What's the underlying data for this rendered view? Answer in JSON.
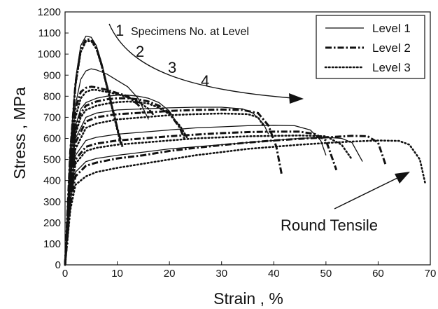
{
  "chart_data": {
    "type": "line",
    "xlabel": "Strain ,  %",
    "ylabel": "Stress ,  MPa",
    "xlim": [
      0,
      70
    ],
    "ylim": [
      0,
      1200
    ],
    "x_ticks": [
      0,
      10,
      20,
      30,
      40,
      50,
      60,
      70
    ],
    "y_ticks": [
      0,
      100,
      200,
      300,
      400,
      500,
      600,
      700,
      800,
      900,
      1000,
      1100,
      1200
    ],
    "grid": false,
    "legend_position": "top-right",
    "legend": [
      {
        "label": "Level 1",
        "style": "solid"
      },
      {
        "label": "Level 2",
        "style": "dash-dot"
      },
      {
        "label": "Level 3",
        "style": "dotted"
      }
    ],
    "annotations": {
      "specimens_label": "Specimens No. at Level",
      "specimen_numbers": [
        "1",
        "2",
        "3",
        "4"
      ],
      "round_tensile": "Round Tensile"
    },
    "series": [
      {
        "level": 1,
        "specimen": 1,
        "x": [
          0,
          1,
          2,
          3,
          4,
          5,
          6,
          7,
          8,
          9,
          10,
          10.5,
          11
        ],
        "y": [
          0,
          560,
          880,
          1040,
          1085,
          1080,
          1040,
          960,
          860,
          760,
          660,
          600,
          560
        ]
      },
      {
        "level": 2,
        "specimen": 1,
        "x": [
          0,
          1,
          2,
          3,
          4,
          5,
          6,
          7,
          8,
          9,
          10,
          11
        ],
        "y": [
          0,
          540,
          860,
          1020,
          1070,
          1068,
          1030,
          950,
          850,
          750,
          650,
          560
        ]
      },
      {
        "level": 3,
        "specimen": 1,
        "x": [
          0,
          1,
          2,
          3,
          4,
          5,
          6,
          7,
          8,
          9,
          10,
          10.7
        ],
        "y": [
          0,
          520,
          850,
          1010,
          1060,
          1062,
          1025,
          945,
          845,
          745,
          640,
          570
        ]
      },
      {
        "level": 1,
        "specimen": 2,
        "x": [
          0,
          1,
          2,
          3,
          4,
          5,
          6,
          8,
          10,
          12,
          14,
          15,
          16
        ],
        "y": [
          0,
          480,
          760,
          880,
          920,
          930,
          925,
          905,
          875,
          845,
          790,
          740,
          690
        ]
      },
      {
        "level": 2,
        "specimen": 2,
        "x": [
          0,
          1,
          2,
          3,
          4,
          5,
          6,
          8,
          10,
          12,
          14,
          15
        ],
        "y": [
          0,
          470,
          740,
          820,
          840,
          845,
          842,
          830,
          815,
          800,
          760,
          720
        ]
      },
      {
        "level": 3,
        "specimen": 2,
        "x": [
          0,
          1,
          2,
          3,
          4,
          5,
          6,
          8,
          10,
          12,
          14,
          16,
          17
        ],
        "y": [
          0,
          450,
          700,
          790,
          820,
          830,
          830,
          820,
          810,
          795,
          775,
          740,
          710
        ]
      },
      {
        "level": 1,
        "specimen": 3,
        "x": [
          0,
          1,
          2,
          3,
          4,
          6,
          8,
          10,
          12,
          14,
          16,
          18,
          20,
          21,
          22
        ],
        "y": [
          0,
          420,
          660,
          740,
          770,
          790,
          800,
          805,
          805,
          800,
          790,
          770,
          730,
          690,
          650
        ]
      },
      {
        "level": 2,
        "specimen": 3,
        "x": [
          0,
          1,
          2,
          3,
          4,
          6,
          8,
          10,
          12,
          14,
          16,
          18,
          20,
          22,
          23
        ],
        "y": [
          0,
          410,
          640,
          720,
          755,
          775,
          785,
          790,
          790,
          785,
          775,
          755,
          720,
          650,
          590
        ]
      },
      {
        "level": 3,
        "specimen": 3,
        "x": [
          0,
          1,
          2,
          3,
          4,
          6,
          8,
          10,
          12,
          14,
          16,
          18,
          20,
          22,
          23.5
        ],
        "y": [
          0,
          400,
          620,
          700,
          735,
          755,
          765,
          772,
          775,
          772,
          765,
          745,
          715,
          660,
          600
        ]
      },
      {
        "level": 1,
        "specimen": 4,
        "x": [
          0,
          1,
          2,
          4,
          6,
          10,
          15,
          20,
          25,
          30,
          34,
          36,
          38,
          39
        ],
        "y": [
          0,
          400,
          600,
          700,
          720,
          735,
          740,
          745,
          748,
          748,
          740,
          720,
          670,
          620
        ]
      },
      {
        "level": 2,
        "specimen": 4,
        "x": [
          0,
          1,
          2,
          4,
          6,
          10,
          15,
          20,
          25,
          30,
          34,
          37,
          39,
          40.5,
          41.5
        ],
        "y": [
          0,
          380,
          580,
          680,
          700,
          715,
          722,
          730,
          735,
          737,
          735,
          720,
          660,
          560,
          430
        ]
      },
      {
        "level": 3,
        "specimen": 4,
        "x": [
          0,
          1,
          2,
          4,
          6,
          10,
          15,
          20,
          25,
          30,
          35,
          37,
          38
        ],
        "y": [
          0,
          360,
          550,
          650,
          670,
          690,
          700,
          710,
          715,
          718,
          715,
          700,
          660
        ]
      },
      {
        "level": 1,
        "specimen": 5,
        "x": [
          0,
          1,
          2,
          4,
          6,
          10,
          15,
          20,
          25,
          30,
          35,
          40,
          44,
          47,
          49,
          50
        ],
        "y": [
          0,
          350,
          520,
          590,
          605,
          620,
          630,
          640,
          650,
          655,
          660,
          662,
          660,
          640,
          590,
          520
        ]
      },
      {
        "level": 2,
        "specimen": 5,
        "x": [
          0,
          1,
          2,
          4,
          6,
          10,
          15,
          20,
          25,
          30,
          35,
          40,
          45,
          48,
          50,
          52
        ],
        "y": [
          0,
          330,
          500,
          560,
          575,
          590,
          600,
          610,
          618,
          625,
          630,
          632,
          632,
          620,
          590,
          450
        ]
      },
      {
        "level": 3,
        "specimen": 5,
        "x": [
          0,
          1,
          2,
          4,
          6,
          10,
          15,
          20,
          25,
          30,
          35,
          40,
          45,
          50,
          53,
          55
        ],
        "y": [
          0,
          320,
          480,
          540,
          555,
          570,
          580,
          590,
          600,
          605,
          610,
          612,
          614,
          610,
          570,
          500
        ]
      },
      {
        "level": 1,
        "specimen": 6,
        "x": [
          0,
          1,
          2,
          4,
          6,
          10,
          15,
          20,
          25,
          30,
          35,
          40,
          45,
          50,
          53,
          55,
          57
        ],
        "y": [
          0,
          300,
          440,
          490,
          505,
          520,
          535,
          550,
          560,
          570,
          580,
          590,
          600,
          605,
          600,
          580,
          490
        ]
      },
      {
        "level": 2,
        "specimen": 6,
        "x": [
          0,
          1,
          2,
          4,
          6,
          10,
          15,
          20,
          25,
          30,
          35,
          40,
          45,
          50,
          55,
          58,
          60,
          61.5
        ],
        "y": [
          0,
          290,
          420,
          470,
          485,
          505,
          520,
          540,
          555,
          568,
          580,
          590,
          598,
          605,
          612,
          610,
          580,
          470
        ]
      },
      {
        "level": 3,
        "specimen": 6,
        "x": [
          0,
          1,
          2,
          4,
          6,
          10,
          15,
          20,
          25,
          30,
          35,
          40,
          45,
          50,
          55,
          60,
          64,
          66,
          68,
          69
        ],
        "y": [
          0,
          260,
          380,
          420,
          440,
          460,
          480,
          500,
          520,
          535,
          550,
          560,
          570,
          578,
          585,
          590,
          588,
          570,
          500,
          390
        ]
      }
    ]
  }
}
